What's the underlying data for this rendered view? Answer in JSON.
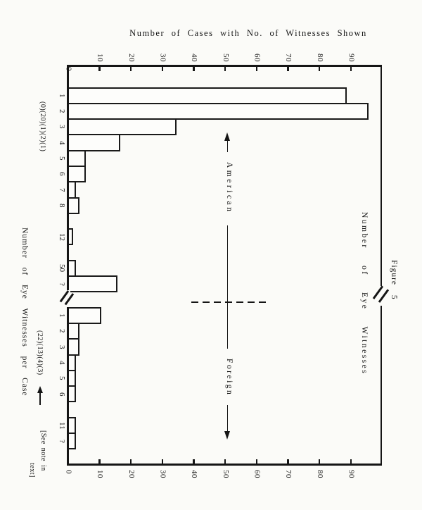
{
  "figure": {
    "title": "Number of Cases with No. of Witnesses Shown",
    "category_axis_label": "Number of Eye Witnesses per Case",
    "witness_axis_label": "Number of Eye Witnesses",
    "figure_caption": "Figure  5",
    "american_label": "American",
    "foreign_label": "Foreign",
    "american_annotation": "(0)(20)(1)(2)(1)",
    "foreign_annotation": "(22)(13)(4)(3)",
    "note_line1": "[See  note  in",
    "note_line2": "text]"
  },
  "chart_data": {
    "type": "bar",
    "title": "Number of Cases with No. of Witnesses Shown",
    "orientation": "horizontal bars; landscape figure rotated 90deg clockwise on the page",
    "value_axis": {
      "label": "Number of Cases with No. of Witnesses Shown",
      "ticks": [
        0,
        10,
        20,
        30,
        40,
        50,
        60,
        70,
        80,
        90
      ],
      "range": [
        0,
        100
      ],
      "shown_on": "top and bottom, tick labels rotated 90deg"
    },
    "category_axis_label": "Number of Eye Witnesses per Case",
    "secondary_axis_label": "Number of Eye Witnesses",
    "axis_break_between_groups": true,
    "reference_line_value": 51,
    "groups": [
      {
        "name": "American",
        "annotation": "(0)(20)(1)(2)(1)",
        "categories": [
          "1",
          "2",
          "3",
          "4",
          "5",
          "6",
          "7",
          "8",
          "12",
          "50",
          "?"
        ],
        "values": [
          88,
          95,
          34,
          16,
          5,
          5,
          2,
          3,
          1,
          2,
          15
        ],
        "slots": [
          0,
          1,
          2,
          3,
          4,
          5,
          6,
          7,
          9,
          11,
          12
        ]
      },
      {
        "name": "Foreign",
        "annotation": "(22)(13)(4)(3)",
        "categories": [
          "1",
          "2",
          "3",
          "4",
          "5",
          "6",
          "11",
          "?"
        ],
        "values": [
          10,
          3,
          3,
          2,
          2,
          2,
          2,
          2
        ],
        "slots": [
          14,
          15,
          16,
          17,
          18,
          19,
          21,
          22
        ]
      }
    ],
    "note": "[See note in text]",
    "figure_caption": "Figure 5"
  }
}
